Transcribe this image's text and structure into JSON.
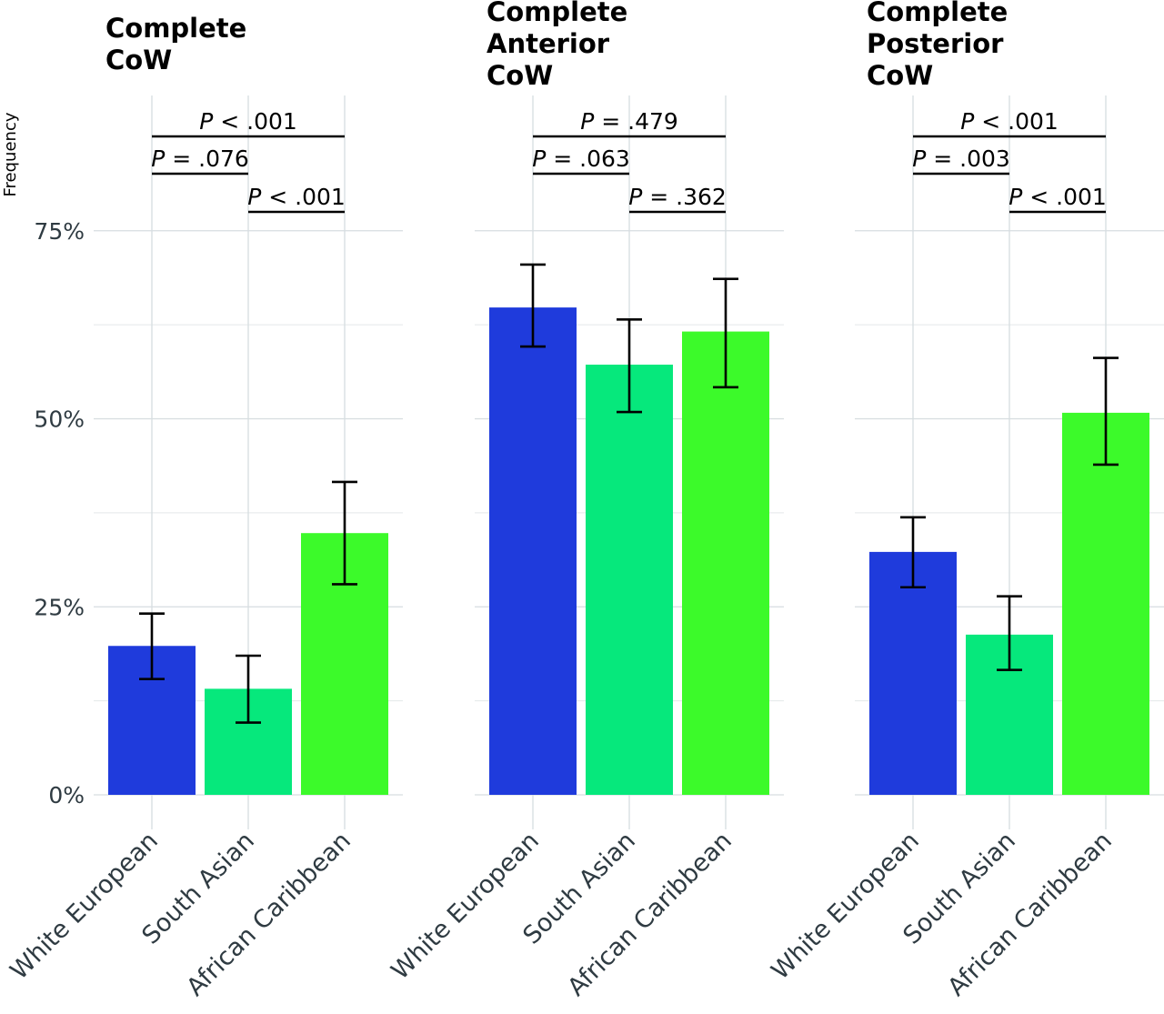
{
  "chart_data": {
    "type": "bar",
    "ylabel": "Frequency",
    "ylim": [
      0,
      90
    ],
    "yticks": [
      {
        "value": 0,
        "label": "0%"
      },
      {
        "value": 25,
        "label": "25%"
      },
      {
        "value": 50,
        "label": "50%"
      },
      {
        "value": 75,
        "label": "75%"
      }
    ],
    "minor_gridlines": [
      12.5,
      37.5,
      62.5
    ],
    "grid": true,
    "legend": "none",
    "categories": [
      "White European",
      "South Asian",
      "African Caribbean"
    ],
    "colors": [
      "#1f3bdc",
      "#06e87c",
      "#3cfa2a"
    ],
    "panels": [
      {
        "title_lines": [
          "Complete",
          "CoW"
        ],
        "values": [
          19.8,
          14.1,
          34.8
        ],
        "error_low": [
          15.4,
          9.6,
          28.0
        ],
        "error_high": [
          24.1,
          18.5,
          41.6
        ],
        "comparisons": [
          {
            "from": 0,
            "to": 2,
            "p_label": "P",
            "p_text": " < .001"
          },
          {
            "from": 0,
            "to": 1,
            "p_label": "P",
            "p_text": " = .076"
          },
          {
            "from": 1,
            "to": 2,
            "p_label": "P",
            "p_text": " < .001"
          }
        ]
      },
      {
        "title_lines": [
          "Complete",
          "Anterior",
          "CoW"
        ],
        "values": [
          64.8,
          57.2,
          61.6
        ],
        "error_low": [
          59.6,
          50.9,
          54.2
        ],
        "error_high": [
          70.5,
          63.2,
          68.6
        ],
        "comparisons": [
          {
            "from": 0,
            "to": 2,
            "p_label": "P",
            "p_text": " = .479"
          },
          {
            "from": 0,
            "to": 1,
            "p_label": "P",
            "p_text": " = .063"
          },
          {
            "from": 1,
            "to": 2,
            "p_label": "P",
            "p_text": " = .362"
          }
        ]
      },
      {
        "title_lines": [
          "Complete",
          "Posterior",
          "CoW"
        ],
        "values": [
          32.3,
          21.3,
          50.8
        ],
        "error_low": [
          27.6,
          16.6,
          43.9
        ],
        "error_high": [
          36.9,
          26.4,
          58.1
        ],
        "comparisons": [
          {
            "from": 0,
            "to": 2,
            "p_label": "P",
            "p_text": " < .001"
          },
          {
            "from": 0,
            "to": 1,
            "p_label": "P",
            "p_text": " = .003"
          },
          {
            "from": 1,
            "to": 2,
            "p_label": "P",
            "p_text": " < .001"
          }
        ]
      }
    ]
  }
}
